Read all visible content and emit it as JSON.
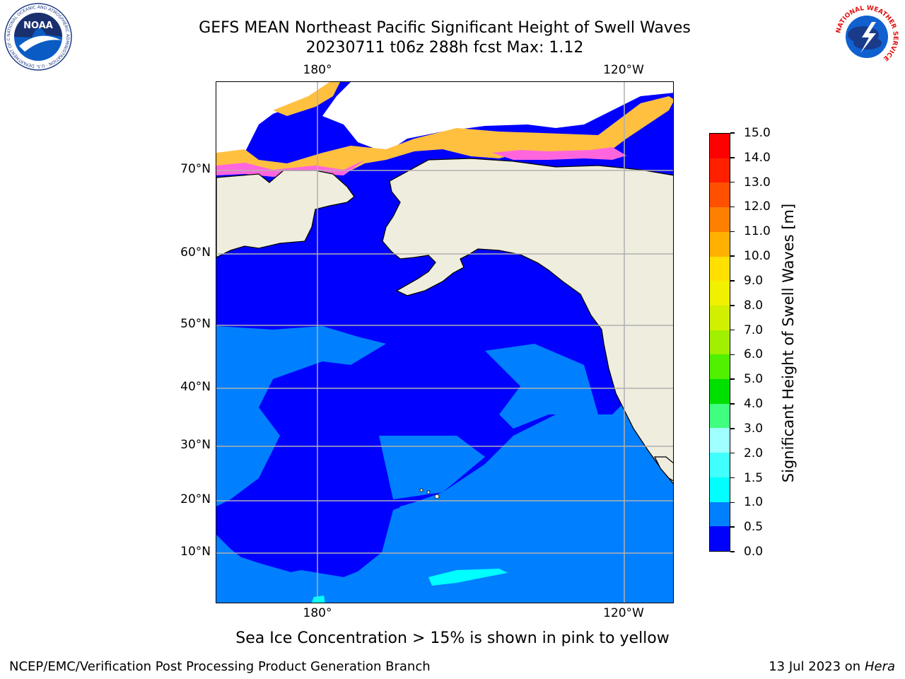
{
  "header": {
    "title_line1": "GEFS MEAN Northeast Pacific Significant Height of Swell Waves",
    "title_line2": "20230711 t06z 288h fcst   Max: 1.12"
  },
  "logos": {
    "left": "NOAA",
    "left_ring": "NATIONAL OCEANIC AND ATMOSPHERIC ADMINISTRATION · U.S. DEPARTMENT OF COMMERCE",
    "right_ring": "NATIONAL WEATHER SERVICE"
  },
  "map": {
    "lat_labels": [
      "70°N",
      "60°N",
      "50°N",
      "40°N",
      "30°N",
      "20°N",
      "10°N"
    ],
    "lon_labels_top": [
      "180°",
      "120°W"
    ],
    "lon_labels_bottom": [
      "180°",
      "120°W"
    ],
    "colors": {
      "land": "#efedde",
      "ocean_low": "#0000ff",
      "ocean_mid": "#0080ff",
      "ocean_cyan": "#00ffff",
      "ice_white": "#ffffff",
      "ice_yellow": "#ffc040",
      "ice_pink": "#ff66dd",
      "grid": "#b0b0b0"
    }
  },
  "colorbar": {
    "title": "Significant Height of Swell Waves [m]",
    "ticks": [
      "0.0",
      "0.5",
      "1.0",
      "1.5",
      "2.0",
      "3.0",
      "4.0",
      "5.0",
      "6.0",
      "7.0",
      "8.0",
      "9.0",
      "10.0",
      "11.0",
      "12.0",
      "13.0",
      "14.0",
      "15.0"
    ],
    "colors": [
      "#0000ff",
      "#0080ff",
      "#00ffff",
      "#40ffff",
      "#a0ffff",
      "#40ff80",
      "#00e000",
      "#50f000",
      "#a0f000",
      "#d0f000",
      "#f0f000",
      "#ffe000",
      "#ffb000",
      "#ff8000",
      "#ff5000",
      "#ff2000",
      "#ff0000"
    ]
  },
  "note": "Sea Ice Concentration > 15% is shown in pink to yellow",
  "footer": {
    "left": "NCEP/EMC/Verification Post Processing Product Generation Branch",
    "right_date": "13 Jul 2023 on ",
    "right_host": "Hera"
  }
}
